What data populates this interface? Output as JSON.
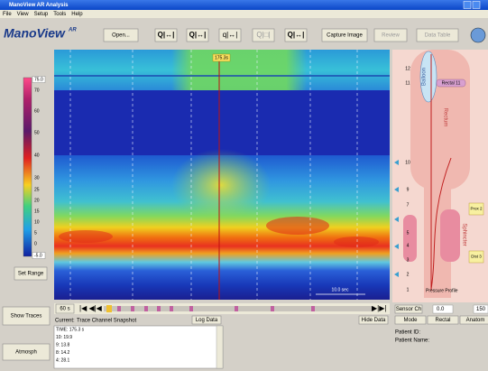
{
  "window": {
    "title": "ManoView AR Analysis"
  },
  "menu": [
    "File",
    "View",
    "Setup",
    "Tools",
    "Help"
  ],
  "logo": {
    "name": "ManoView",
    "suffix": "AR"
  },
  "toolbar": {
    "open": "Open...",
    "capture": "Capture Image",
    "review": "Review",
    "data_table": "Data Table"
  },
  "colorbar": {
    "labels": [
      "75.0",
      "70",
      "60",
      "50",
      "40",
      "30",
      "25",
      "20",
      "15",
      "10",
      "5",
      "0",
      "-5.0"
    ]
  },
  "set_range": "Set Range",
  "cursor_time": "175.3s",
  "scale_bar": "10.0 sec",
  "time_window": "60 s",
  "show_traces": "Show Traces",
  "atmosph": "Atmosph",
  "snapshot": {
    "current": "Current:",
    "title": "Trace Channel Snapshot",
    "log_data": "Log Data",
    "hide_data": "Hide Data",
    "lines": [
      "TIME: 175.3 s",
      "10: 19.9",
      "9: 13.8",
      "8: 14.2",
      "4: 28.1"
    ]
  },
  "anatomy": {
    "balloon": "Balloon",
    "rectum": "Rectum",
    "rectal_marker": "Rectal 11",
    "sphincter": "Sphincter",
    "prox": "Prox 2",
    "dist": "Dist 3",
    "pressure_profile": "Pressure Profile",
    "channels": [
      "12",
      "11",
      "10",
      "9",
      "7",
      "5",
      "4",
      "3",
      "2",
      "1"
    ]
  },
  "sensor": {
    "label": "Sensor Ch",
    "min": "0.0",
    "max": "150"
  },
  "tabs": [
    "Mode",
    "Rectal",
    "Anatom"
  ],
  "patient": {
    "id": "Patient ID:",
    "name": "Patient Name:"
  }
}
